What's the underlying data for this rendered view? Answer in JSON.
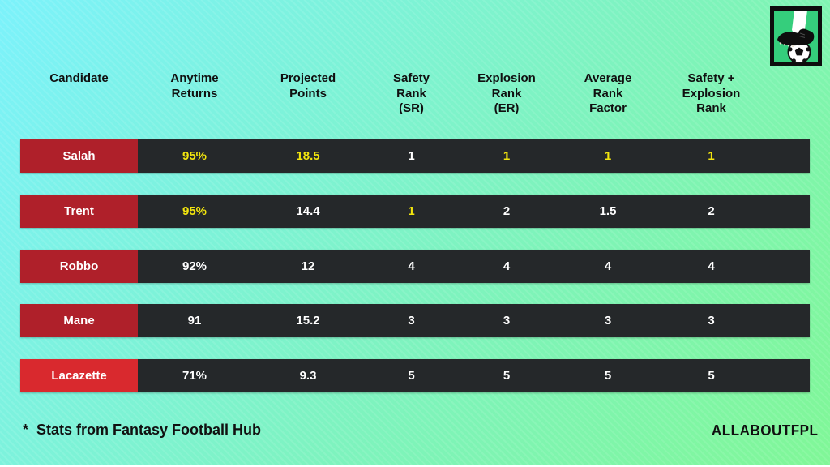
{
  "chart_data": {
    "type": "table",
    "columns": [
      "Candidate",
      "Anytime\nReturns",
      "Projected\nPoints",
      "Safety\nRank\n(SR)",
      "Explosion\nRank\n(ER)",
      "Average\nRank\nFactor",
      "Safety +\nExplosion\nRank"
    ],
    "rows": [
      {
        "candidate": "Salah",
        "row_color": "dark_red",
        "values": [
          "95%",
          "18.5",
          "1",
          "1",
          "1",
          "1"
        ],
        "yellow": [
          true,
          true,
          false,
          true,
          true,
          true
        ]
      },
      {
        "candidate": "Trent",
        "row_color": "dark_red",
        "values": [
          "95%",
          "14.4",
          "1",
          "2",
          "1.5",
          "2"
        ],
        "yellow": [
          true,
          false,
          true,
          false,
          false,
          false
        ]
      },
      {
        "candidate": "Robbo",
        "row_color": "dark_red",
        "values": [
          "92%",
          "12",
          "4",
          "4",
          "4",
          "4"
        ],
        "yellow": [
          false,
          false,
          false,
          false,
          false,
          false
        ]
      },
      {
        "candidate": "Mane",
        "row_color": "dark_red",
        "values": [
          "91",
          "15.2",
          "3",
          "3",
          "3",
          "3"
        ],
        "yellow": [
          false,
          false,
          false,
          false,
          false,
          false
        ]
      },
      {
        "candidate": "Lacazette",
        "row_color": "bright_red",
        "values": [
          "71%",
          "9.3",
          "5",
          "5",
          "5",
          "5"
        ],
        "yellow": [
          false,
          false,
          false,
          false,
          false,
          false
        ]
      }
    ],
    "layout": {
      "legend": false,
      "grid": false
    }
  },
  "footer": {
    "note": "*  Stats from Fantasy Football Hub",
    "brand": "ALLABOUTFPL"
  },
  "icons": {
    "logo": "football-boot-on-ball-icon"
  },
  "colors": {
    "background_cyan": "#7cf2fb",
    "background_green": "#80f797",
    "row_background": "#25282a",
    "candidate_red": "#af202a",
    "candidate_red_bright": "#d9292e",
    "value_yellow": "#f2e50e",
    "value_white": "#ffffff",
    "text_black": "#101010",
    "logo_green": "#35ce7c"
  }
}
